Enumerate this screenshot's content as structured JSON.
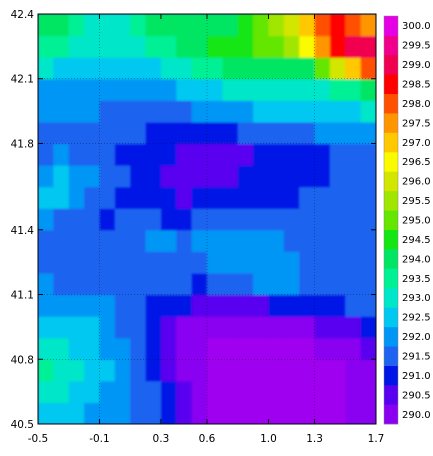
{
  "chart_data": {
    "type": "heatmap",
    "title": "",
    "xlabel": "",
    "ylabel": "",
    "xlim": [
      -0.5,
      1.7
    ],
    "ylim": [
      40.5,
      42.4
    ],
    "x_ticks": [
      -0.5,
      -0.1,
      0.3,
      0.6,
      1.0,
      1.3,
      1.7
    ],
    "x_tick_labels": [
      "-0.5",
      "-0.1",
      "0.3",
      "0.6",
      "1.0",
      "1.3",
      "1.7"
    ],
    "y_ticks": [
      40.5,
      40.8,
      41.1,
      41.4,
      41.8,
      42.1,
      42.4
    ],
    "y_tick_labels": [
      "40.5",
      "40.8",
      "41.1",
      "41.4",
      "41.8",
      "42.1",
      "42.4"
    ],
    "grid": true,
    "colorbar": {
      "placement": "right",
      "levels": [
        290.0,
        290.5,
        291.0,
        291.5,
        292.0,
        292.5,
        293.0,
        293.5,
        294.0,
        294.5,
        295.0,
        295.5,
        296.0,
        296.5,
        297.0,
        297.5,
        298.0,
        298.5,
        299.0,
        299.5,
        300.0
      ],
      "labels": [
        "290.0",
        "290.5",
        "291.0",
        "291.5",
        "292.0",
        "292.5",
        "293.0",
        "293.5",
        "294.0",
        "294.5",
        "295.0",
        "295.5",
        "296.0",
        "296.5",
        "297.0",
        "297.5",
        "298.0",
        "298.5",
        "299.0",
        "299.5",
        "300.0"
      ],
      "colors": [
        "#8a00f0",
        "#5a00f0",
        "#0014e6",
        "#1e64f0",
        "#0096f5",
        "#00c8f0",
        "#00e6c8",
        "#00f096",
        "#00e664",
        "#14e614",
        "#64e600",
        "#a0e600",
        "#d2e600",
        "#fafa00",
        "#ffc800",
        "#ff9600",
        "#ff5000",
        "#ff0000",
        "#f00050",
        "#f0008c",
        "#e600e6"
      ],
      "below_color": "#a000f0"
    },
    "field": {
      "description_levels_index": "values are temperature levels (K) sampled on a 22x19 grid over the lon/lat extent",
      "nx": 22,
      "ny": 19,
      "values": [
        [
          292.6,
          292.6,
          292.5,
          292.4,
          292.3,
          292.4,
          291.9,
          291.6,
          291.2,
          290.8,
          290.3,
          289.9,
          289.8,
          289.9,
          289.8,
          289.8,
          289.9,
          289.8,
          289.9,
          289.9,
          290.0,
          290.2
        ],
        [
          293.2,
          293.0,
          292.8,
          292.6,
          292.4,
          292.3,
          291.8,
          291.5,
          291.0,
          290.6,
          290.2,
          289.9,
          289.8,
          289.8,
          289.7,
          289.8,
          289.8,
          289.8,
          289.8,
          289.9,
          290.1,
          290.3
        ],
        [
          293.6,
          293.3,
          293.0,
          292.8,
          292.5,
          292.2,
          291.7,
          291.4,
          290.9,
          290.4,
          290.1,
          289.8,
          289.8,
          289.8,
          289.7,
          289.8,
          289.8,
          289.8,
          289.9,
          289.9,
          290.1,
          290.4
        ],
        [
          293.3,
          293.1,
          292.9,
          292.7,
          292.4,
          292.0,
          291.6,
          291.2,
          290.8,
          290.3,
          290.0,
          289.8,
          289.8,
          289.8,
          289.8,
          289.8,
          289.9,
          289.9,
          290.0,
          290.1,
          290.3,
          290.6
        ],
        [
          292.9,
          292.8,
          292.6,
          292.5,
          292.2,
          291.9,
          291.5,
          291.1,
          290.8,
          290.4,
          290.2,
          290.1,
          290.1,
          290.1,
          290.0,
          290.0,
          290.2,
          290.3,
          290.5,
          290.6,
          290.9,
          291.1
        ],
        [
          292.4,
          292.3,
          292.2,
          292.1,
          292.0,
          291.8,
          291.5,
          291.4,
          291.3,
          291.0,
          290.9,
          290.8,
          290.9,
          290.9,
          290.9,
          291.0,
          291.1,
          291.2,
          291.3,
          291.4,
          291.5,
          291.6
        ],
        [
          292.0,
          291.9,
          291.9,
          291.8,
          291.8,
          291.7,
          291.6,
          291.6,
          291.6,
          291.5,
          291.4,
          291.5,
          291.6,
          291.8,
          292.1,
          292.2,
          292.0,
          291.8,
          291.7,
          291.6,
          291.7,
          291.8
        ],
        [
          291.8,
          291.7,
          291.6,
          291.6,
          291.6,
          291.6,
          291.6,
          291.7,
          291.8,
          291.8,
          291.9,
          292.0,
          292.1,
          292.2,
          292.4,
          292.3,
          292.0,
          291.8,
          291.6,
          291.6,
          291.7,
          291.8
        ],
        [
          291.7,
          291.6,
          291.5,
          291.5,
          291.5,
          291.7,
          291.8,
          292.0,
          292.0,
          291.9,
          292.0,
          292.0,
          292.0,
          292.0,
          292.1,
          292.0,
          291.8,
          291.6,
          291.5,
          291.6,
          291.7,
          291.8
        ],
        [
          292.2,
          291.8,
          291.6,
          291.5,
          291.4,
          291.6,
          291.7,
          291.6,
          291.4,
          291.4,
          291.6,
          291.8,
          291.9,
          291.8,
          291.7,
          291.6,
          291.5,
          291.5,
          291.5,
          291.6,
          291.7,
          291.8
        ],
        [
          292.7,
          292.5,
          292.2,
          291.8,
          291.5,
          291.4,
          291.2,
          291.1,
          291.0,
          290.9,
          291.0,
          291.1,
          291.1,
          291.1,
          291.2,
          291.3,
          291.4,
          291.5,
          291.5,
          291.6,
          291.6,
          291.7
        ],
        [
          292.3,
          292.6,
          292.4,
          292.1,
          291.8,
          291.5,
          291.3,
          291.1,
          290.9,
          290.8,
          290.9,
          290.9,
          290.9,
          291.0,
          291.1,
          291.2,
          291.3,
          291.4,
          291.4,
          291.5,
          291.6,
          291.8
        ],
        [
          291.9,
          292.0,
          291.9,
          291.8,
          291.6,
          291.4,
          291.3,
          291.2,
          291.0,
          290.9,
          290.8,
          290.8,
          290.9,
          290.9,
          291.1,
          291.2,
          291.3,
          291.3,
          291.4,
          291.6,
          291.7,
          291.9
        ],
        [
          291.8,
          291.8,
          291.8,
          291.8,
          291.7,
          291.6,
          291.5,
          291.4,
          291.3,
          291.3,
          291.2,
          291.3,
          291.4,
          291.5,
          291.6,
          291.7,
          291.8,
          291.9,
          292.0,
          292.1,
          292.2,
          292.4
        ],
        [
          292.0,
          292.0,
          292.0,
          292.0,
          291.9,
          291.9,
          291.8,
          291.8,
          291.8,
          291.9,
          292.0,
          292.1,
          292.2,
          292.3,
          292.5,
          292.5,
          292.5,
          292.6,
          292.7,
          292.7,
          292.8,
          293.0
        ],
        [
          292.4,
          292.4,
          292.3,
          292.3,
          292.2,
          292.2,
          292.2,
          292.3,
          292.4,
          292.6,
          292.8,
          292.9,
          293.0,
          293.1,
          293.3,
          293.3,
          293.3,
          293.2,
          293.3,
          293.6,
          293.9,
          294.4
        ],
        [
          293.0,
          292.9,
          292.8,
          292.7,
          292.6,
          292.6,
          292.7,
          292.9,
          293.2,
          293.4,
          293.6,
          293.9,
          294.1,
          294.2,
          294.3,
          294.2,
          294.1,
          294.4,
          295.2,
          296.3,
          297.2,
          298.0
        ],
        [
          293.8,
          293.6,
          293.3,
          293.1,
          293.0,
          293.1,
          293.3,
          293.6,
          293.9,
          294.1,
          294.3,
          294.5,
          294.6,
          294.8,
          295.0,
          295.3,
          295.9,
          296.8,
          297.9,
          298.8,
          299.2,
          299.0
        ],
        [
          294.2,
          294.0,
          293.6,
          293.3,
          293.2,
          293.4,
          293.8,
          294.1,
          294.3,
          294.4,
          294.4,
          294.3,
          294.4,
          294.6,
          295.0,
          295.6,
          296.4,
          297.3,
          298.1,
          298.6,
          298.3,
          297.6
        ]
      ]
    }
  }
}
